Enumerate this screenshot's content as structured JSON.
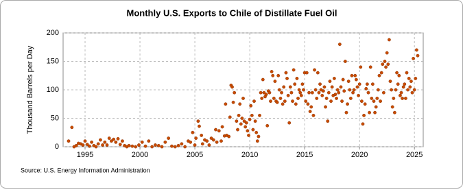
{
  "chart_data": {
    "type": "scatter",
    "title": "Monthly U.S. Exports to Chile of Distillate Fuel Oil",
    "y_label": "Thousand Barrels per Day",
    "source": "Source: U.S. Energy Information Administration",
    "color": "#c84b00",
    "xlim": [
      1993,
      2025.8
    ],
    "xticks": [
      1995,
      2000,
      2005,
      2010,
      2015,
      2020,
      2025
    ],
    "ylim": [
      0,
      200
    ],
    "yticks": [
      0,
      50,
      100,
      150,
      200
    ],
    "grid": true,
    "x": [
      1993.5,
      1993.8,
      1994.0,
      1994.2,
      1994.4,
      1994.6,
      1994.8,
      1995.0,
      1995.2,
      1995.4,
      1995.6,
      1995.8,
      1996.0,
      1996.2,
      1996.4,
      1996.6,
      1996.8,
      1997.0,
      1997.2,
      1997.4,
      1997.6,
      1997.8,
      1998.0,
      1998.2,
      1998.4,
      1998.6,
      1998.8,
      1999.0,
      1999.3,
      1999.6,
      1999.9,
      2000.2,
      2000.5,
      2000.8,
      2001.1,
      2001.4,
      2001.7,
      2002.0,
      2002.3,
      2002.6,
      2002.9,
      2003.2,
      2003.5,
      2003.8,
      2004.1,
      2004.4,
      2004.6,
      2004.8,
      2005.0,
      2005.1,
      2005.3,
      2005.4,
      2005.6,
      2005.7,
      2005.9,
      2006.1,
      2006.3,
      2006.5,
      2006.7,
      2006.9,
      2007.0,
      2007.2,
      2007.4,
      2007.5,
      2007.7,
      2007.8,
      2007.9,
      2008.1,
      2008.2,
      2008.3,
      2008.4,
      2008.5,
      2008.6,
      2008.8,
      2008.9,
      2009.0,
      2009.1,
      2009.2,
      2009.3,
      2009.4,
      2009.5,
      2009.6,
      2009.7,
      2009.8,
      2009.9,
      2010.0,
      2010.1,
      2010.2,
      2010.3,
      2010.4,
      2010.5,
      2010.6,
      2010.7,
      2010.8,
      2010.9,
      2011.0,
      2011.1,
      2011.2,
      2011.3,
      2011.4,
      2011.5,
      2011.6,
      2011.7,
      2011.8,
      2011.9,
      2012.0,
      2012.1,
      2012.2,
      2012.3,
      2012.4,
      2012.5,
      2012.6,
      2012.7,
      2012.8,
      2012.9,
      2013.0,
      2013.1,
      2013.2,
      2013.3,
      2013.4,
      2013.5,
      2013.6,
      2013.7,
      2013.8,
      2013.9,
      2014.0,
      2014.1,
      2014.2,
      2014.3,
      2014.4,
      2014.5,
      2014.6,
      2014.7,
      2014.8,
      2014.9,
      2015.0,
      2015.1,
      2015.2,
      2015.3,
      2015.4,
      2015.5,
      2015.6,
      2015.7,
      2015.8,
      2015.9,
      2016.0,
      2016.1,
      2016.2,
      2016.3,
      2016.4,
      2016.5,
      2016.6,
      2016.7,
      2016.8,
      2016.9,
      2017.0,
      2017.1,
      2017.2,
      2017.3,
      2017.4,
      2017.5,
      2017.6,
      2017.7,
      2017.8,
      2017.9,
      2018.0,
      2018.1,
      2018.2,
      2018.3,
      2018.4,
      2018.5,
      2018.6,
      2018.7,
      2018.8,
      2018.9,
      2019.0,
      2019.1,
      2019.2,
      2019.3,
      2019.4,
      2019.5,
      2019.6,
      2019.7,
      2019.8,
      2019.9,
      2020.0,
      2020.1,
      2020.2,
      2020.3,
      2020.4,
      2020.5,
      2020.6,
      2020.7,
      2020.8,
      2020.9,
      2021.0,
      2021.1,
      2021.2,
      2021.3,
      2021.4,
      2021.5,
      2021.6,
      2021.7,
      2021.8,
      2021.9,
      2022.0,
      2022.1,
      2022.2,
      2022.3,
      2022.4,
      2022.5,
      2022.6,
      2022.7,
      2022.8,
      2022.9,
      2023.0,
      2023.1,
      2023.2,
      2023.3,
      2023.4,
      2023.5,
      2023.6,
      2023.7,
      2023.8,
      2023.9,
      2024.0,
      2024.1,
      2024.2,
      2024.3,
      2024.4,
      2024.5,
      2024.6,
      2024.7,
      2024.8,
      2024.9,
      2025.0,
      2025.1,
      2025.2,
      2025.3
    ],
    "values": [
      10,
      34,
      0,
      2,
      6,
      5,
      3,
      10,
      4,
      1,
      8,
      2,
      0,
      5,
      12,
      3,
      8,
      3,
      15,
      10,
      13,
      8,
      14,
      4,
      10,
      2,
      0,
      2,
      1,
      0,
      3,
      8,
      1,
      10,
      0,
      3,
      2,
      0,
      8,
      15,
      1,
      0,
      2,
      5,
      0,
      10,
      8,
      25,
      3,
      15,
      45,
      36,
      20,
      5,
      12,
      10,
      3,
      15,
      12,
      30,
      8,
      28,
      10,
      35,
      19,
      75,
      20,
      18,
      52,
      108,
      105,
      78,
      95,
      45,
      30,
      55,
      75,
      40,
      50,
      85,
      45,
      35,
      42,
      28,
      20,
      48,
      72,
      55,
      30,
      80,
      45,
      25,
      10,
      18,
      55,
      95,
      85,
      118,
      95,
      88,
      92,
      37,
      98,
      95,
      80,
      132,
      125,
      85,
      115,
      80,
      78,
      125,
      100,
      85,
      95,
      75,
      105,
      80,
      130,
      120,
      90,
      42,
      105,
      95,
      80,
      135,
      110,
      75,
      120,
      85,
      100,
      95,
      90,
      110,
      100,
      130,
      80,
      130,
      75,
      95,
      62,
      70,
      95,
      55,
      135,
      100,
      85,
      130,
      95,
      110,
      100,
      90,
      98,
      105,
      70,
      85,
      45,
      95,
      115,
      80,
      105,
      90,
      120,
      92,
      85,
      100,
      95,
      180,
      105,
      80,
      118,
      98,
      150,
      60,
      75,
      115,
      100,
      85,
      125,
      95,
      100,
      125,
      118,
      105,
      90,
      110,
      140,
      80,
      40,
      55,
      75,
      102,
      110,
      95,
      60,
      140,
      85,
      110,
      80,
      60,
      70,
      85,
      100,
      125,
      80,
      130,
      145,
      95,
      150,
      140,
      165,
      145,
      188,
      115,
      100,
      70,
      85,
      60,
      100,
      130,
      110,
      125,
      90,
      95,
      85,
      105,
      110,
      85,
      130,
      100,
      120,
      105,
      115,
      95,
      155,
      100,
      120,
      170,
      160
    ]
  }
}
